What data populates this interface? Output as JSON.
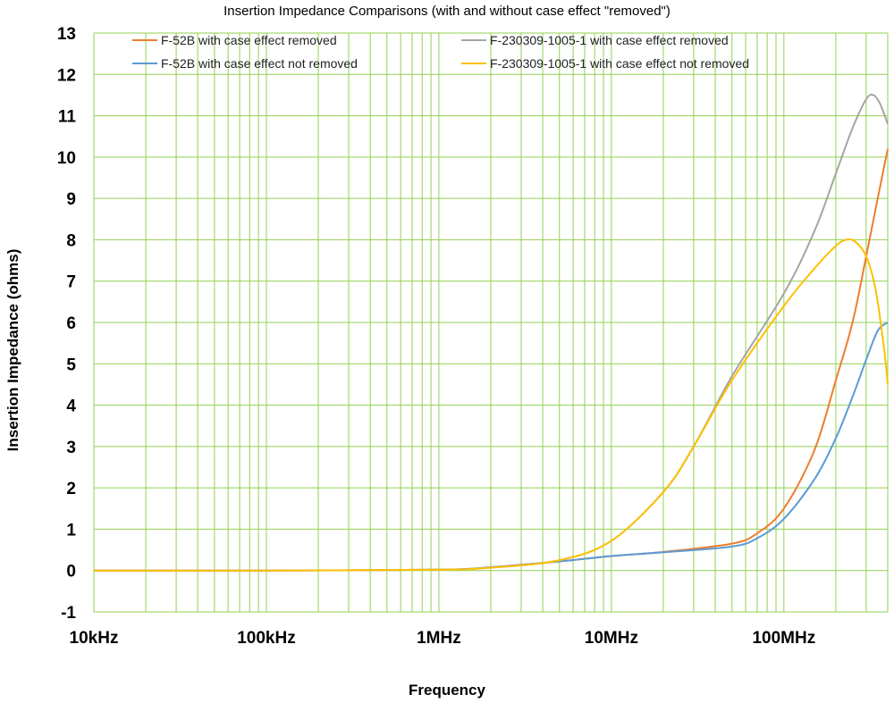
{
  "chart_data": {
    "type": "line",
    "title": "Insertion Impedance Comparisons (with and without case effect \"removed\")",
    "xlabel": "Frequency",
    "ylabel": "Insertion Impedance (ohms)",
    "x_scale": "log",
    "xlim": [
      10000,
      400000000
    ],
    "ylim": [
      -1,
      13
    ],
    "grid": true,
    "grid_color": "#92d050",
    "legend_position": "top",
    "x_ticks": [
      {
        "value": 10000,
        "label": "10kHz"
      },
      {
        "value": 100000,
        "label": "100kHz"
      },
      {
        "value": 1000000,
        "label": "1MHz"
      },
      {
        "value": 10000000,
        "label": "10MHz"
      },
      {
        "value": 100000000,
        "label": "100MHz"
      }
    ],
    "y_ticks": [
      -1,
      0,
      1,
      2,
      3,
      4,
      5,
      6,
      7,
      8,
      9,
      10,
      11,
      12,
      13
    ],
    "series": [
      {
        "name": "F-52B with case effect removed",
        "color": "#ed7d31",
        "x": [
          10000,
          100000,
          1000000,
          2000000,
          5000000,
          10000000,
          20000000,
          50000000,
          70000000,
          100000000,
          150000000,
          200000000,
          250000000,
          300000000,
          350000000,
          400000000
        ],
        "y": [
          0,
          0,
          0.02,
          0.08,
          0.22,
          0.35,
          0.45,
          0.65,
          0.9,
          1.5,
          2.9,
          4.6,
          6.0,
          7.6,
          9.0,
          10.2
        ]
      },
      {
        "name": "F-52B with case effect not removed",
        "color": "#5b9bd5",
        "x": [
          10000,
          100000,
          1000000,
          2000000,
          5000000,
          10000000,
          20000000,
          50000000,
          70000000,
          100000000,
          150000000,
          200000000,
          250000000,
          300000000,
          350000000,
          400000000
        ],
        "y": [
          0,
          0,
          0.02,
          0.08,
          0.22,
          0.35,
          0.44,
          0.58,
          0.78,
          1.25,
          2.2,
          3.2,
          4.2,
          5.1,
          5.8,
          6.0
        ]
      },
      {
        "name": "F-230309-1005-1 with case effect removed",
        "color": "#a5a5a5",
        "x": [
          10000,
          100000,
          1000000,
          2000000,
          5000000,
          10000000,
          20000000,
          30000000,
          50000000,
          100000000,
          150000000,
          200000000,
          250000000,
          300000000,
          330000000,
          360000000,
          400000000
        ],
        "y": [
          0,
          0,
          0.02,
          0.07,
          0.25,
          0.72,
          1.9,
          3.0,
          4.7,
          6.7,
          8.2,
          9.6,
          10.7,
          11.4,
          11.5,
          11.3,
          10.8
        ]
      },
      {
        "name": "F-230309-1005-1 with case effect not removed",
        "color": "#ffc000",
        "x": [
          10000,
          100000,
          1000000,
          2000000,
          5000000,
          10000000,
          20000000,
          30000000,
          50000000,
          100000000,
          150000000,
          200000000,
          230000000,
          260000000,
          300000000,
          340000000,
          380000000,
          400000000
        ],
        "y": [
          0,
          0,
          0.02,
          0.07,
          0.25,
          0.72,
          1.9,
          3.0,
          4.6,
          6.4,
          7.3,
          7.85,
          8.0,
          7.95,
          7.6,
          6.8,
          5.4,
          4.5
        ]
      }
    ]
  }
}
